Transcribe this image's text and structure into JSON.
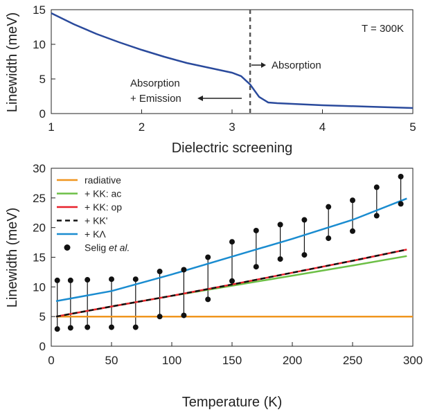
{
  "chart_data": [
    {
      "type": "line",
      "xlabel": "Dielectric screening",
      "ylabel": "Linewidth (meV)",
      "xlim": [
        1,
        5
      ],
      "ylim": [
        0,
        15
      ],
      "xticks": [
        "1",
        "2",
        "3",
        "4",
        "5"
      ],
      "yticks": [
        "0",
        "5",
        "10",
        "15"
      ],
      "grid": false,
      "series": [
        {
          "color": "#2a4a9c",
          "x": [
            1.0,
            1.25,
            1.5,
            1.75,
            2.0,
            2.25,
            2.5,
            2.75,
            3.0,
            3.1,
            3.2,
            3.3,
            3.4,
            3.5,
            3.75,
            4.0,
            4.25,
            4.5,
            4.75,
            5.0
          ],
          "y": [
            14.5,
            12.9,
            11.5,
            10.3,
            9.2,
            8.2,
            7.3,
            6.6,
            5.9,
            5.4,
            4.2,
            2.4,
            1.6,
            1.5,
            1.35,
            1.2,
            1.1,
            1.0,
            0.9,
            0.8
          ]
        }
      ],
      "vline": 3.2,
      "annotations": {
        "temperature": "T = 300K",
        "absorption": "Absorption",
        "absorption_emission_line1": "Absorption",
        "absorption_emission_line2": "+ Emission"
      }
    },
    {
      "type": "line",
      "xlabel": "Temperature (K)",
      "ylabel": "Linewidth (meV)",
      "xlim": [
        0,
        300
      ],
      "ylim": [
        0,
        30
      ],
      "xticks": [
        "0",
        "50",
        "100",
        "150",
        "200",
        "250",
        "300"
      ],
      "yticks": [
        "0",
        "5",
        "10",
        "15",
        "20",
        "25",
        "30"
      ],
      "grid": false,
      "legend_position": "top-left",
      "series": [
        {
          "name": "radiative",
          "color": "#f0951e",
          "dash": false,
          "x": [
            4,
            300
          ],
          "y": [
            5.0,
            5.0
          ]
        },
        {
          "name": "+ KK: ac",
          "color": "#6cbf45",
          "dash": false,
          "x": [
            4,
            50,
            100,
            150,
            200,
            250,
            295
          ],
          "y": [
            5.0,
            6.7,
            8.5,
            10.2,
            11.9,
            13.6,
            15.2
          ]
        },
        {
          "name": "+ KK: op",
          "color": "#e8202a",
          "dash": false,
          "x": [
            4,
            50,
            100,
            150,
            200,
            250,
            295
          ],
          "y": [
            5.0,
            6.7,
            8.5,
            10.4,
            12.4,
            14.4,
            16.3
          ]
        },
        {
          "name": "+ KK'",
          "color": "#111111",
          "dash": true,
          "x": [
            4,
            50,
            100,
            150,
            200,
            250,
            295
          ],
          "y": [
            5.0,
            6.7,
            8.5,
            10.4,
            12.4,
            14.4,
            16.3
          ]
        },
        {
          "name": "+ KΛ",
          "color": "#1a8cd0",
          "dash": false,
          "x": [
            4,
            50,
            100,
            150,
            200,
            250,
            295
          ],
          "y": [
            7.6,
            9.3,
            12.1,
            15.1,
            18.1,
            21.3,
            24.9
          ]
        }
      ],
      "scatter": {
        "name_prefix": "Selig ",
        "name_italic": "et al.",
        "color": "#111111",
        "x": [
          5,
          16,
          30,
          50,
          70,
          90,
          110,
          130,
          150,
          170,
          190,
          210,
          230,
          250,
          270,
          290
        ],
        "upper": [
          11.1,
          11.1,
          11.2,
          11.3,
          11.3,
          12.6,
          12.9,
          15.0,
          17.6,
          19.5,
          20.5,
          21.3,
          23.5,
          24.6,
          26.8,
          28.6
        ],
        "lower": [
          2.9,
          3.1,
          3.2,
          3.2,
          3.2,
          5.0,
          5.2,
          7.9,
          11.0,
          13.4,
          14.7,
          15.4,
          18.2,
          19.4,
          22.0,
          24.0
        ]
      }
    }
  ]
}
